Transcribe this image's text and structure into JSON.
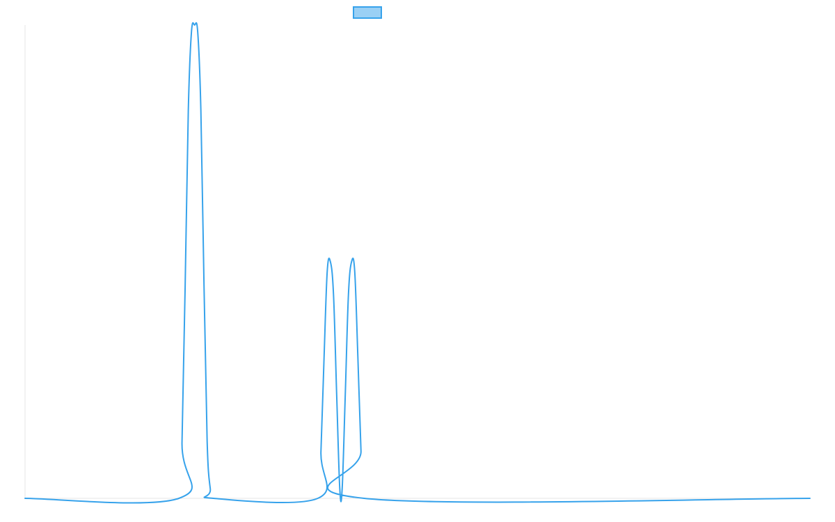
{
  "chart_data": {
    "type": "line",
    "title": "",
    "xlabel": "",
    "ylabel": "",
    "xlim": [
      0,
      1000
    ],
    "ylim": [
      0,
      1
    ],
    "grid": false,
    "legend": {
      "placement": "top-center",
      "entries": [
        {
          "name": "",
          "color": "#36a2eb",
          "fill": "#9ad0f5"
        }
      ]
    },
    "series": [
      {
        "name": "",
        "color": "#36a2eb",
        "x": [
          0,
          196,
          200,
          204,
          208,
          212,
          216,
          220,
          224,
          228,
          232,
          236,
          240,
          373,
          377,
          381,
          385,
          389,
          393,
          397,
          401,
          404,
          408,
          412,
          416,
          420,
          424,
          428,
          432,
          1000
        ],
        "values": [
          0,
          0,
          0.12,
          0.45,
          0.82,
          0.985,
          1.0,
          0.985,
          0.82,
          0.45,
          0.12,
          0.02,
          0,
          0,
          0.1,
          0.3,
          0.48,
          0.5,
          0.43,
          0.22,
          0.02,
          0.02,
          0.22,
          0.43,
          0.5,
          0.48,
          0.3,
          0.1,
          0,
          0
        ]
      }
    ]
  }
}
